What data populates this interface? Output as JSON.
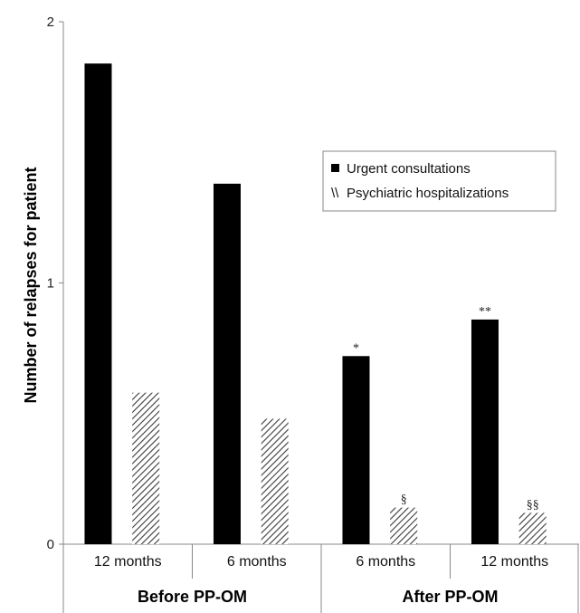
{
  "chart_data": {
    "type": "bar",
    "title": "",
    "ylabel": "Number of relapses for patient",
    "xlabel": "",
    "ylim": [
      0,
      2
    ],
    "yticks": [
      "0",
      "1",
      "2"
    ],
    "grid": false,
    "legend_position": "top-right",
    "categories": [
      "12 months",
      "6 months",
      "6 months",
      "12 months"
    ],
    "groups": [
      {
        "label": "Before PP-OM",
        "categories": [
          0,
          1
        ]
      },
      {
        "label": "After PP-OM",
        "categories": [
          2,
          3
        ]
      }
    ],
    "series": [
      {
        "name": "Urgent consultations",
        "values": [
          1.84,
          1.38,
          0.72,
          0.86
        ],
        "color": "#000000",
        "pattern": "solid",
        "annotations": [
          "",
          "",
          "*",
          "**"
        ]
      },
      {
        "name": "Psychiatric hospitalizations",
        "values": [
          0.58,
          0.48,
          0.14,
          0.12
        ],
        "color": "#444444",
        "pattern": "hatched",
        "annotations": [
          "",
          "",
          "§",
          "§§"
        ]
      }
    ]
  }
}
